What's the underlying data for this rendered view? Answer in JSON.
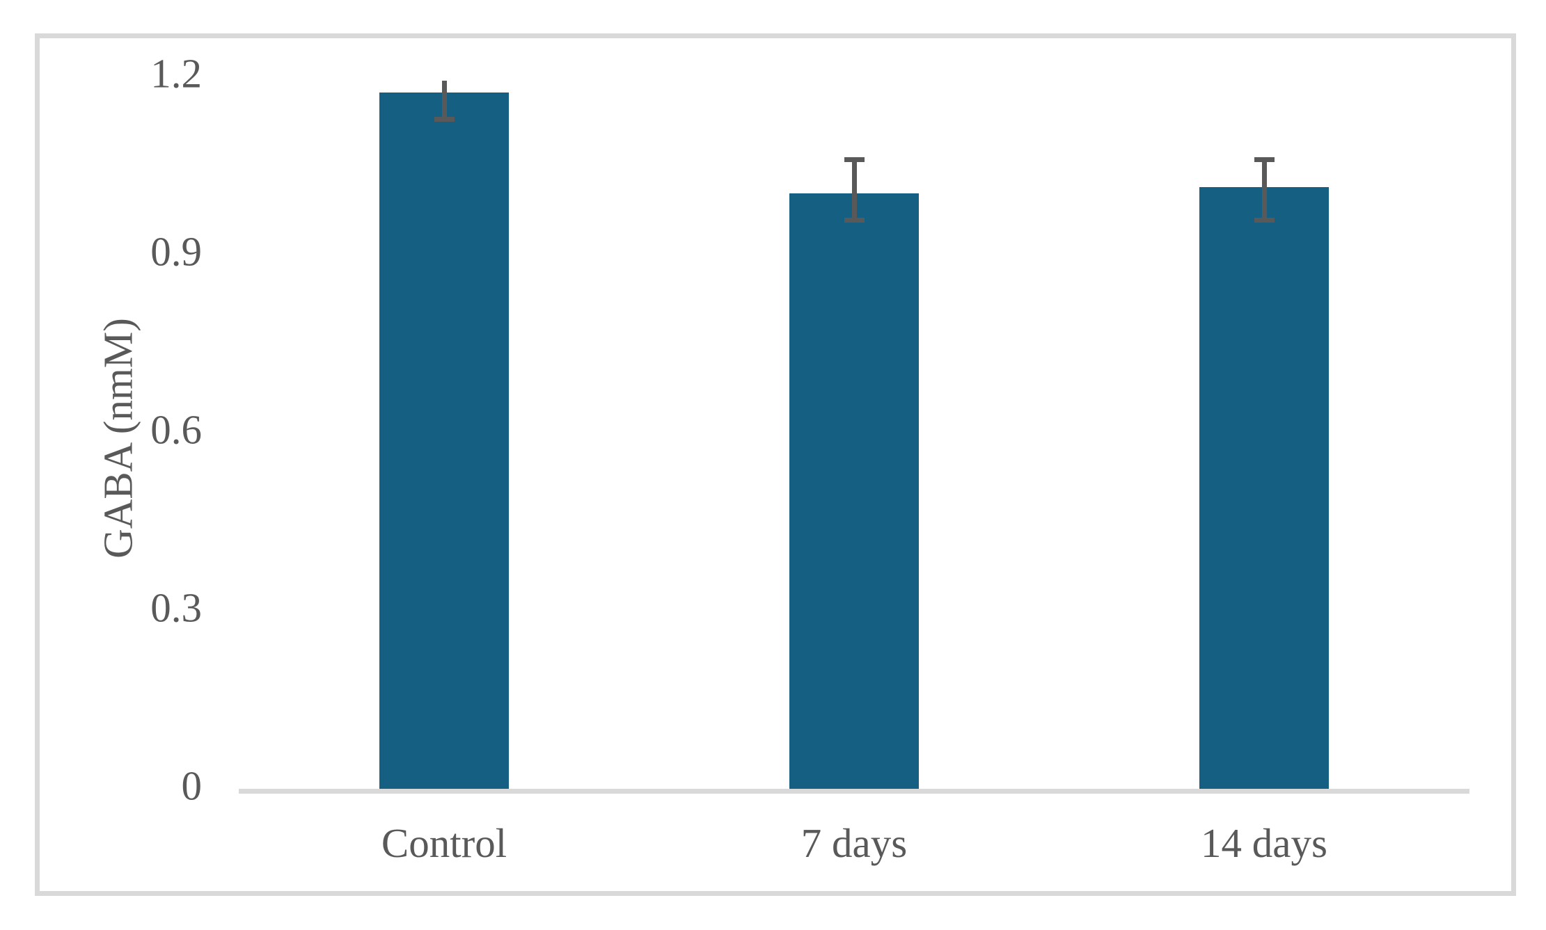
{
  "figure": {
    "background": "#ffffff",
    "frame_border_color": "#d9d9d9"
  },
  "chart_data": {
    "type": "bar",
    "title": "",
    "categories": [
      "Control",
      "7 days",
      "14 days"
    ],
    "values": [
      1.17,
      1.0,
      1.01
    ],
    "errors": [
      {
        "whisker_top": 1.19,
        "whisker_bottom": 1.12,
        "cap_top": false,
        "cap_bottom": true
      },
      {
        "whisker_top": 1.06,
        "whisker_bottom": 0.95,
        "cap_top": true,
        "cap_bottom": true
      },
      {
        "whisker_top": 1.06,
        "whisker_bottom": 0.95,
        "cap_top": true,
        "cap_bottom": true
      }
    ],
    "xlabel": "",
    "ylabel": "GABA (nmM)",
    "ylim": [
      0,
      1.2
    ],
    "ytick_labels": [
      "0",
      "0.3",
      "0.6",
      "0.9",
      "1.2"
    ],
    "grid": false,
    "legend": false,
    "colors": {
      "bar": "#156082",
      "error_bar": "#595959",
      "text": "#595959",
      "axis_line": "#d9d9d9"
    }
  }
}
